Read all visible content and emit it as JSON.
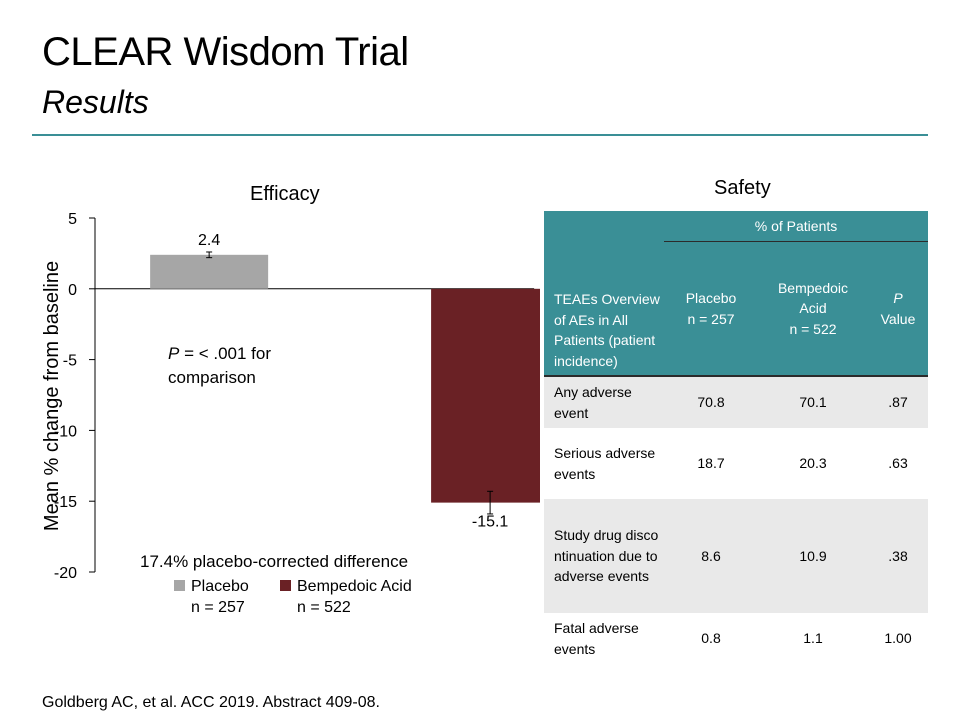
{
  "slide": {
    "title": "CLEAR Wisdom Trial",
    "subtitle": "Results",
    "footer": "Goldberg AC, et al. ACC 2019. Abstract 409-08."
  },
  "efficacy": {
    "pnote_p": "P",
    "pnote_rest": " = < .001 for comparison",
    "difference": "17.4% placebo-corrected difference",
    "legend": [
      {
        "label": "Placebo",
        "n": "n = 257"
      },
      {
        "label": "Bempedoic Acid",
        "n": "n = 522"
      }
    ]
  },
  "chart_data": {
    "type": "bar",
    "title": "Efficacy",
    "ylabel": "Mean % change from baseline",
    "xlabel": "",
    "categories": [
      "Placebo",
      "Bempedoic Acid"
    ],
    "values": [
      2.4,
      -15.1
    ],
    "value_labels": [
      "2.4",
      "-15.1"
    ],
    "colors": [
      "#a6a6a6",
      "#6a2125"
    ],
    "ylim": [
      -20,
      5
    ],
    "yticks": [
      5,
      0,
      -5,
      -10,
      -15,
      -20
    ],
    "ytick_labels": [
      "5",
      "0",
      "-5",
      "-10",
      "-15",
      "-20"
    ],
    "error": [
      0.2,
      0.8
    ],
    "legend_position": "bottom",
    "grid": false
  },
  "safety": {
    "title": "Safety",
    "group_header": "% of Patients",
    "col_first": "TEAEs Overview of AEs in All Patients (patient incidence)",
    "col_placebo_1": "Placebo",
    "col_placebo_2": "n = 257",
    "col_bempedoic_1": "Bempedoic",
    "col_bempedoic_2": "Acid",
    "col_bempedoic_3": "n = 522",
    "col_p_1": "P",
    "col_p_2": "Value",
    "rows": [
      {
        "label": "Any adverse event",
        "placebo": "70.8",
        "bempedoic": "70.1",
        "p": ".87"
      },
      {
        "label": "Serious adverse events",
        "placebo": "18.7",
        "bempedoic": "20.3",
        "p": ".63"
      },
      {
        "label": "Study drug discontinuation due to adverse events",
        "placebo": "8.6",
        "bempedoic": "10.9",
        "p": ".38"
      },
      {
        "label": "Fatal adverse events",
        "placebo": "0.8",
        "bempedoic": "1.1",
        "p": "1.00"
      }
    ]
  }
}
